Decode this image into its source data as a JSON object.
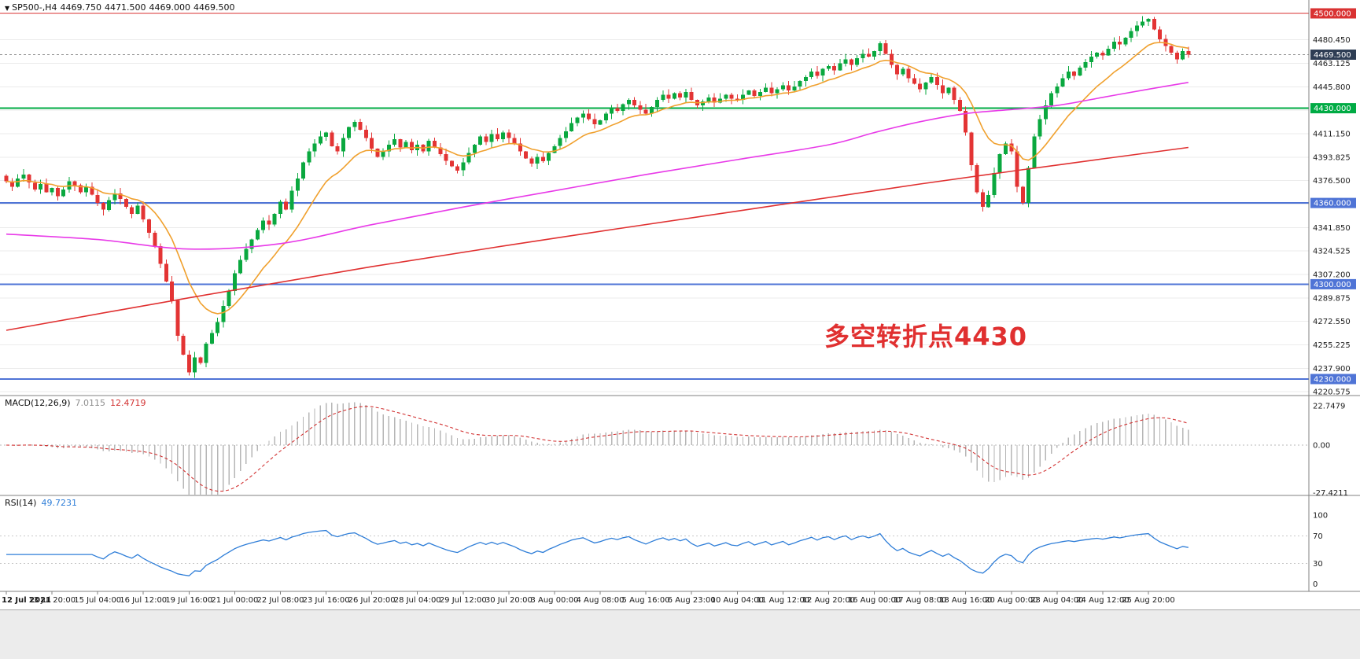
{
  "header": {
    "symbol_period": "SP500-,H4",
    "open": "4469.750",
    "high": "4471.500",
    "low": "4469.000",
    "close": "4469.500"
  },
  "colors": {
    "up_candle": "#0aa83f",
    "down_candle": "#e33434",
    "grid": "#ebebeb",
    "axis_text": "#1a1a1a",
    "macd_histogram": "#b6b6b6",
    "macd_signal": "#d23333",
    "rsi_line": "#2f7ed8",
    "scale_separator": "#808080"
  },
  "chart_data": {
    "type": "candlestick",
    "symbol": "SP500-",
    "timeframe": "H4",
    "title": "SP500-,H4 4469.750 4471.500 4469.000 4469.500",
    "closes": [
      4376,
      4372,
      4378,
      4381,
      4375,
      4370,
      4374,
      4368,
      4371,
      4365,
      4370,
      4376,
      4373,
      4368,
      4372,
      4366,
      4360,
      4355,
      4362,
      4367,
      4363,
      4357,
      4352,
      4358,
      4348,
      4338,
      4328,
      4315,
      4302,
      4288,
      4262,
      4248,
      4235,
      4246,
      4242,
      4256,
      4264,
      4272,
      4284,
      4295,
      4308,
      4318,
      4326,
      4333,
      4340,
      4347,
      4344,
      4352,
      4361,
      4355,
      4369,
      4378,
      4390,
      4398,
      4404,
      4409,
      4412,
      4402,
      4398,
      4408,
      4416,
      4420,
      4414,
      4408,
      4400,
      4394,
      4398,
      4403,
      4407,
      4401,
      4405,
      4399,
      4403,
      4398,
      4406,
      4401,
      4396,
      4391,
      4387,
      4384,
      4390,
      4397,
      4403,
      4409,
      4405,
      4411,
      4407,
      4412,
      4408,
      4404,
      4398,
      4393,
      4389,
      4394,
      4391,
      4397,
      4402,
      4408,
      4413,
      4419,
      4423,
      4426,
      4422,
      4418,
      4421,
      4426,
      4430,
      4428,
      4433,
      4436,
      4432,
      4429,
      4426,
      4431,
      4436,
      4440,
      4437,
      4441,
      4438,
      4442,
      4436,
      4432,
      4435,
      4438,
      4434,
      4437,
      4440,
      4437,
      4436,
      4440,
      4443,
      4439,
      4442,
      4445,
      4441,
      4444,
      4447,
      4443,
      4446,
      4450,
      4453,
      4457,
      4454,
      4459,
      4461,
      4458,
      4463,
      4466,
      4462,
      4467,
      4470,
      4468,
      4472,
      4478,
      4470,
      4462,
      4455,
      4459,
      4452,
      4448,
      4444,
      4449,
      4453,
      4447,
      4441,
      4445,
      4436,
      4428,
      4412,
      4388,
      4368,
      4357,
      4366,
      4382,
      4396,
      4404,
      4398,
      4372,
      4360,
      4386,
      4409,
      4422,
      4432,
      4441,
      4446,
      4452,
      4457,
      4454,
      4460,
      4464,
      4468,
      4471,
      4469,
      4474,
      4479,
      4477,
      4482,
      4487,
      4491,
      4494,
      4496,
      4488,
      4481,
      4476,
      4471,
      4466,
      4472,
      4469.5
    ],
    "time_axis": {
      "ticks": [
        "12 Jul 2021",
        "13 Jul 20:00",
        "15 Jul 04:00",
        "16 Jul 12:00",
        "19 Jul 16:00",
        "21 Jul 00:00",
        "22 Jul 08:00",
        "23 Jul 16:00",
        "26 Jul 20:00",
        "28 Jul 04:00",
        "29 Jul 12:00",
        "30 Jul 20:00",
        "3 Aug 00:00",
        "4 Aug 08:00",
        "5 Aug 16:00",
        "6 Aug 23:00",
        "10 Aug 04:00",
        "11 Aug 12:00",
        "12 Aug 20:00",
        "16 Aug 00:00",
        "17 Aug 08:00",
        "18 Aug 16:00",
        "20 Aug 00:00",
        "23 Aug 04:00",
        "24 Aug 12:00",
        "25 Aug 20:00"
      ]
    },
    "price_scale": {
      "grid_labels": [
        "4480.450",
        "4463.125",
        "4445.800",
        "4428.475",
        "4411.150",
        "4393.825",
        "4376.500",
        "4359.175",
        "4341.850",
        "4324.525",
        "4307.200",
        "4289.875",
        "4272.550",
        "4255.225",
        "4237.900",
        "4220.575"
      ],
      "grid_step": 17.325
    },
    "hlines": [
      {
        "price": 4500,
        "label": "4500.000",
        "color": "#d93232",
        "width": 1.4
      },
      {
        "price": 4430,
        "label": "4430.000",
        "color": "#00ab44",
        "width": 2
      },
      {
        "price": 4360,
        "label": "4360.000",
        "color": "#4f74d6",
        "width": 2
      },
      {
        "price": 4300,
        "label": "4300.000",
        "color": "#4f74d6",
        "width": 2
      },
      {
        "price": 4230,
        "label": "4230.000",
        "color": "#4f74d6",
        "width": 2
      }
    ],
    "current_price": {
      "value": 4469.5,
      "label": "4469.500",
      "line_color": "#8f8f8f",
      "badge_color": "#2e3d54"
    },
    "moving_averages": [
      {
        "name": "fast-ma",
        "color": "#f0a02d",
        "type": "ema",
        "period": 13
      },
      {
        "name": "mid-ma",
        "color": "#e83ae8",
        "type": "keypoints",
        "points": [
          [
            0,
            4337
          ],
          [
            16,
            4333
          ],
          [
            32,
            4326
          ],
          [
            48,
            4330
          ],
          [
            64,
            4344
          ],
          [
            80,
            4357
          ],
          [
            96,
            4369
          ],
          [
            112,
            4381
          ],
          [
            128,
            4392
          ],
          [
            144,
            4403
          ],
          [
            152,
            4412
          ],
          [
            160,
            4420
          ],
          [
            168,
            4426
          ],
          [
            176,
            4429
          ],
          [
            184,
            4432
          ],
          [
            192,
            4438
          ],
          [
            200,
            4444
          ],
          [
            207,
            4449
          ]
        ]
      },
      {
        "name": "slow-ma",
        "color": "#e03030",
        "type": "keypoints",
        "points": [
          [
            0,
            4266
          ],
          [
            32,
            4290
          ],
          [
            64,
            4313
          ],
          [
            96,
            4334
          ],
          [
            128,
            4354
          ],
          [
            160,
            4374
          ],
          [
            184,
            4388
          ],
          [
            207,
            4401
          ]
        ]
      }
    ],
    "annotation": {
      "text": "多空转折点4430",
      "color": "#e03030"
    },
    "indicators": {
      "macd": {
        "name": "MACD(12,26,9)",
        "main_value": "7.0115",
        "signal_value": "12.4719",
        "params": [
          12,
          26,
          9
        ],
        "scale_labels": [
          "22.7479",
          "0.00",
          "-27.4211"
        ],
        "scale_max": 22.7479,
        "scale_min": -27.4211
      },
      "rsi": {
        "name": "RSI(14)",
        "value": "49.7231",
        "period": 14,
        "scale_labels": [
          "100",
          "70",
          "30",
          "0"
        ],
        "scale_values": [
          100,
          70,
          30,
          0
        ],
        "levels": [
          70,
          30
        ]
      }
    }
  }
}
